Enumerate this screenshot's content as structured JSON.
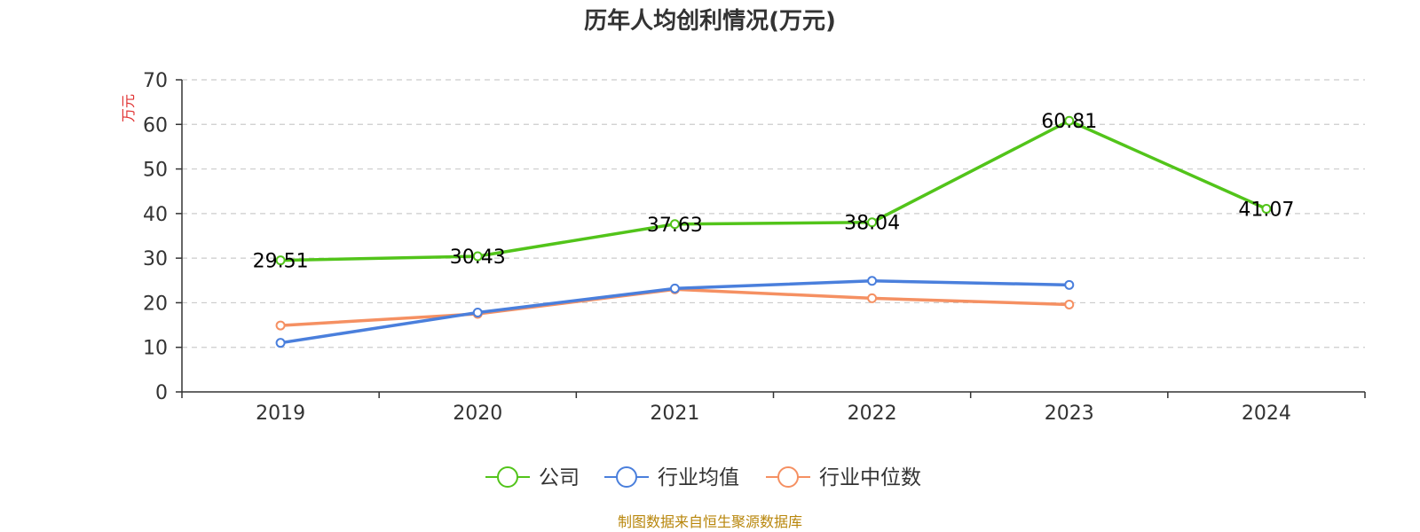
{
  "chart_data": {
    "type": "line",
    "title": "历年人均创利情况(万元)",
    "ylabel": "万元",
    "xlabel": "",
    "categories": [
      "2019",
      "2020",
      "2021",
      "2022",
      "2023",
      "2024"
    ],
    "ylim": [
      0,
      70
    ],
    "yticks": [
      0,
      10,
      20,
      30,
      40,
      50,
      60,
      70
    ],
    "grid": true,
    "legend_position": "bottom-center",
    "series": [
      {
        "name": "公司",
        "color": "#52c41a",
        "values": [
          29.51,
          30.43,
          37.63,
          38.04,
          60.81,
          41.07
        ],
        "labels": [
          "29.51",
          "30.43",
          "37.63",
          "38.04",
          "60.81",
          "41.07"
        ]
      },
      {
        "name": "行业均值",
        "color": "#4a7fdc",
        "values": [
          11.0,
          17.8,
          23.2,
          24.9,
          24.0,
          null
        ]
      },
      {
        "name": "行业中位数",
        "color": "#f59062",
        "values": [
          14.9,
          17.5,
          23.0,
          21.0,
          19.6,
          null
        ]
      }
    ],
    "ylabel_color": "#e03131"
  },
  "source": {
    "text": "制图数据来自恒生聚源数据库",
    "color": "#b8860b"
  }
}
